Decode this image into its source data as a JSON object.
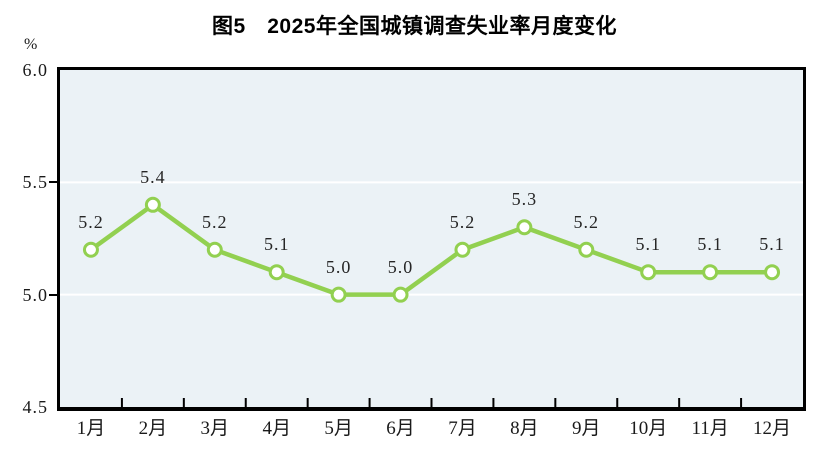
{
  "title": "图5　2025年全国城镇调查失业率月度变化",
  "y_axis_unit": "%",
  "chart_data": {
    "type": "line",
    "title": "图5　2025年全国城镇调查失业率月度变化",
    "categories": [
      "1月",
      "2月",
      "3月",
      "4月",
      "5月",
      "6月",
      "7月",
      "8月",
      "9月",
      "10月",
      "11月",
      "12月"
    ],
    "values": [
      5.2,
      5.4,
      5.2,
      5.1,
      5.0,
      5.0,
      5.2,
      5.3,
      5.2,
      5.1,
      5.1,
      5.1
    ],
    "data_labels": [
      "5.2",
      "5.4",
      "5.2",
      "5.1",
      "5.0",
      "5.0",
      "5.2",
      "5.3",
      "5.2",
      "5.1",
      "5.1",
      "5.1"
    ],
    "xlabel": "",
    "ylabel": "%",
    "ylim": [
      4.5,
      6.0
    ],
    "yticks": [
      "6.0",
      "5.5",
      "5.0",
      "4.5"
    ],
    "grid_values": [
      5.5,
      5.0
    ],
    "grid": "horizontal",
    "legend": "none",
    "colors": {
      "line": "#92d050",
      "marker_fill": "#ffffff",
      "plot_bg": "#ebf2f6",
      "gridline": "#ffffff",
      "axis": "#000000",
      "text": "#1a1a1a"
    }
  }
}
